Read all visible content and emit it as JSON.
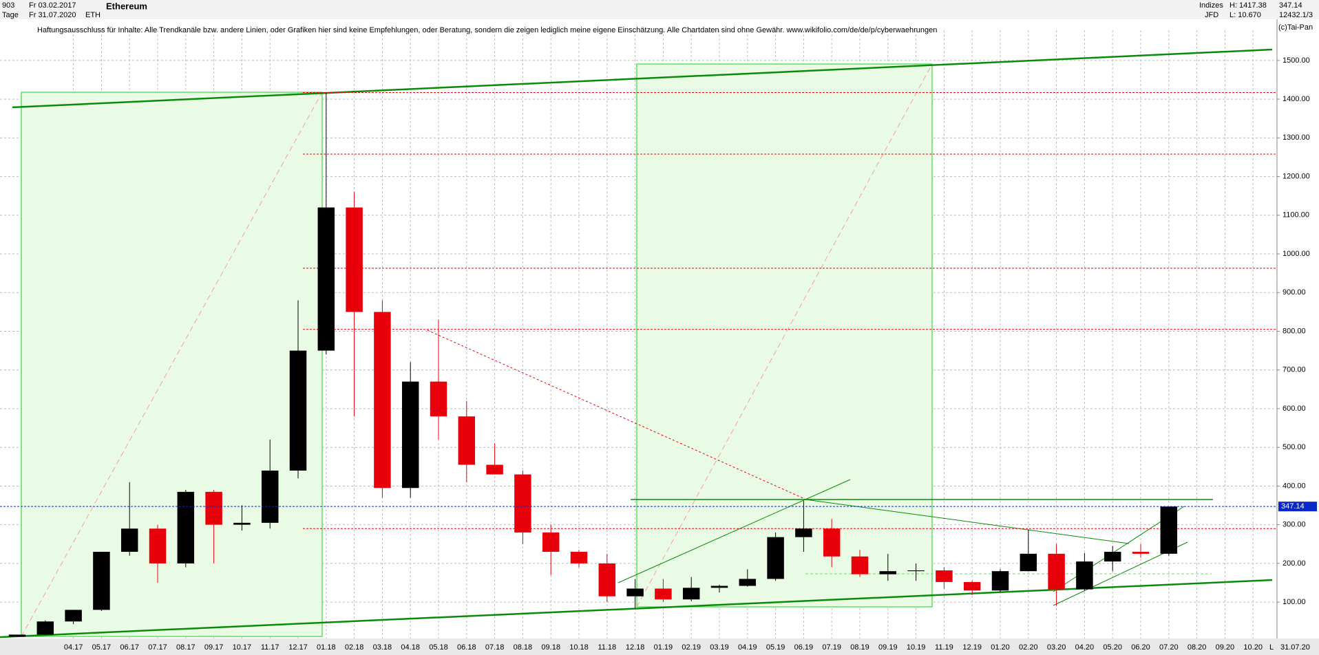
{
  "header": {
    "bars": "903",
    "period": "Tage",
    "from": "Fr 03.02.2017",
    "to": "Fr 31.07.2020",
    "name": "Ethereum",
    "symbol": "ETH",
    "group": "Indizes",
    "source": "JFD",
    "high": "H: 1417.38",
    "low": "L: 10.670",
    "last": "347.14",
    "extra": "12432.1/3",
    "disclaimer": "Haftungsausschluss für Inhalte: Alle Trendkanäle bzw. andere Linien, oder Grafiken hier sind keine Empfehlungen, oder Beratung, sondern die zeigen lediglich meine eigene Einschätzung. Alle Chartdaten sind ohne Gewähr.  www.wikifolio.com/de/de/p/cyberwaehrungen",
    "copyright": "(c)Tai-Pan",
    "scale_mode": "L",
    "end_date": "31.07.20"
  },
  "chart_data": {
    "type": "candlestick",
    "categories": [
      null,
      null,
      "04.17",
      "05.17",
      "06.17",
      "07.17",
      "08.17",
      "09.17",
      "10.17",
      "11.17",
      "12.17",
      "01.18",
      "02.18",
      "03.18",
      "04.18",
      "05.18",
      "06.18",
      "07.18",
      "08.18",
      "09.18",
      "10.18",
      "11.18",
      "12.18",
      "01.19",
      "02.19",
      "03.19",
      "04.19",
      "05.19",
      "06.19",
      "07.19",
      "08.19",
      "09.19",
      "10.19",
      "11.19",
      "12.19",
      "01.20",
      "02.20",
      "03.20",
      "04.20",
      "05.20",
      "06.20",
      "07.20",
      "08.20",
      "09.20",
      "10.20"
    ],
    "open": [
      10.7,
      16,
      50,
      80,
      230,
      290,
      200,
      385,
      300,
      305,
      440,
      750,
      1120,
      850,
      395,
      670,
      580,
      455,
      430,
      280,
      230,
      200,
      115,
      135,
      107,
      137,
      142,
      160,
      268,
      290,
      218,
      172,
      180,
      182,
      152,
      130,
      180,
      225,
      133,
      205,
      230,
      225,
      null,
      null,
      null
    ],
    "high": [
      16,
      53,
      80,
      230,
      410,
      300,
      390,
      390,
      350,
      520,
      880,
      1417,
      1160,
      880,
      720,
      830,
      620,
      510,
      440,
      300,
      235,
      225,
      160,
      160,
      165,
      145,
      185,
      280,
      362,
      315,
      235,
      225,
      200,
      190,
      155,
      185,
      288,
      250,
      227,
      245,
      250,
      347,
      null,
      null,
      null
    ],
    "low": [
      10.6,
      15,
      43,
      77,
      220,
      150,
      190,
      200,
      285,
      290,
      420,
      740,
      580,
      370,
      370,
      520,
      410,
      430,
      250,
      170,
      190,
      100,
      83,
      100,
      102,
      125,
      140,
      155,
      230,
      190,
      165,
      155,
      155,
      135,
      118,
      127,
      180,
      90,
      130,
      180,
      215,
      220,
      null,
      null,
      null
    ],
    "close": [
      16,
      50,
      80,
      230,
      290,
      200,
      385,
      300,
      305,
      440,
      750,
      1120,
      850,
      395,
      670,
      580,
      455,
      430,
      280,
      230,
      200,
      115,
      135,
      107,
      137,
      142,
      160,
      268,
      290,
      218,
      172,
      180,
      182,
      152,
      130,
      180,
      225,
      133,
      205,
      230,
      225,
      347,
      null,
      null,
      null
    ],
    "up_color": "#000000",
    "down_color": "#e8000b",
    "ylim": [
      6,
      1578
    ],
    "yticks": [
      {
        "value": 100,
        "label": "100.00"
      },
      {
        "value": 200,
        "label": "200.00"
      },
      {
        "value": 300,
        "label": "300.00"
      },
      {
        "value": 400,
        "label": "400.00"
      },
      {
        "value": 500,
        "label": "500.00"
      },
      {
        "value": 600,
        "label": "600.00"
      },
      {
        "value": 700,
        "label": "700.00"
      },
      {
        "value": 800,
        "label": "800.00"
      },
      {
        "value": 900,
        "label": "900.00"
      },
      {
        "value": 1000,
        "label": "1000.00"
      },
      {
        "value": 1100,
        "label": "1100.00"
      },
      {
        "value": 1200,
        "label": "1200.00"
      },
      {
        "value": 1300,
        "label": "1300.00"
      },
      {
        "value": 1400,
        "label": "1400.00"
      },
      {
        "value": 1500,
        "label": "1500.00"
      }
    ],
    "levels": [
      1417,
      1258,
      963,
      805,
      290
    ],
    "level_color": "#e8000b",
    "last_price": 347.14,
    "last_color": "#0a28c8",
    "grid": true
  }
}
